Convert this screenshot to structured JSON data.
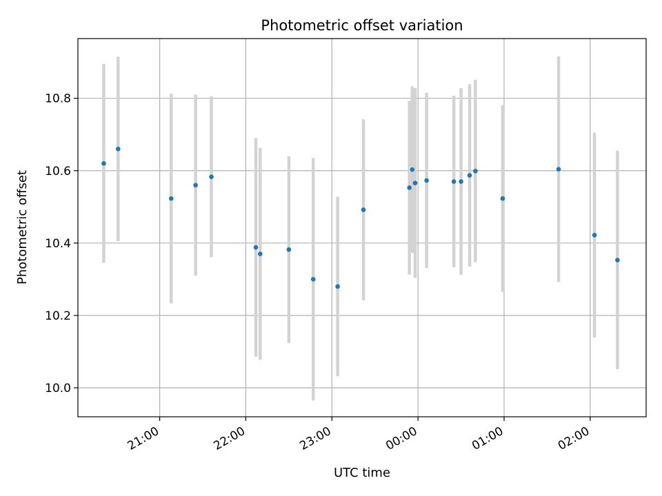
{
  "chart_data": {
    "type": "scatter",
    "title": "Photometric offset variation",
    "xlabel": "UTC time",
    "ylabel": "Photometric offset",
    "xlim": [
      "20:03",
      "02:39"
    ],
    "ylim": [
      9.92,
      10.965
    ],
    "x_ticks": [
      "21:00",
      "22:00",
      "23:00",
      "00:00",
      "01:00",
      "02:00"
    ],
    "y_ticks": [
      10.0,
      10.2,
      10.4,
      10.6,
      10.8
    ],
    "grid": true,
    "colors": {
      "point": "#1f77b4",
      "errorbar": "#d3d3d3",
      "grid": "#b0b0b0"
    },
    "points": [
      {
        "x": "20:21",
        "y": 10.62,
        "yerr": 0.275
      },
      {
        "x": "20:31",
        "y": 10.66,
        "yerr": 0.255
      },
      {
        "x": "21:08",
        "y": 10.523,
        "yerr": 0.29
      },
      {
        "x": "21:25",
        "y": 10.56,
        "yerr": 0.25
      },
      {
        "x": "21:36",
        "y": 10.583,
        "yerr": 0.222
      },
      {
        "x": "22:07",
        "y": 10.388,
        "yerr": 0.302
      },
      {
        "x": "22:10",
        "y": 10.37,
        "yerr": 0.293
      },
      {
        "x": "22:30",
        "y": 10.382,
        "yerr": 0.258
      },
      {
        "x": "22:47",
        "y": 10.3,
        "yerr": 0.335
      },
      {
        "x": "23:04",
        "y": 10.28,
        "yerr": 0.248
      },
      {
        "x": "23:22",
        "y": 10.492,
        "yerr": 0.25
      },
      {
        "x": "23:54",
        "y": 10.553,
        "yerr": 0.24
      },
      {
        "x": "23:56",
        "y": 10.603,
        "yerr": 0.23
      },
      {
        "x": "23:58",
        "y": 10.566,
        "yerr": 0.262
      },
      {
        "x": "00:06",
        "y": 10.573,
        "yerr": 0.242
      },
      {
        "x": "00:25",
        "y": 10.57,
        "yerr": 0.237
      },
      {
        "x": "00:30",
        "y": 10.57,
        "yerr": 0.258
      },
      {
        "x": "00:36",
        "y": 10.587,
        "yerr": 0.252
      },
      {
        "x": "00:40",
        "y": 10.599,
        "yerr": 0.252
      },
      {
        "x": "00:59",
        "y": 10.523,
        "yerr": 0.258
      },
      {
        "x": "01:38",
        "y": 10.604,
        "yerr": 0.312
      },
      {
        "x": "02:03",
        "y": 10.422,
        "yerr": 0.283
      },
      {
        "x": "02:19",
        "y": 10.353,
        "yerr": 0.302
      }
    ]
  }
}
